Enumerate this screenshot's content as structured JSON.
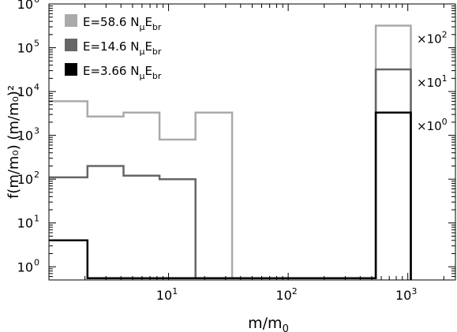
{
  "chart_data": {
    "type": "histogram-step",
    "xlabel": "m/m",
    "xlabel_sub": "0",
    "ylabel": "f(m/m₀) (m/m₀)²",
    "xscale": "log",
    "yscale": "log",
    "xlim": [
      1.0,
      2500.0
    ],
    "ylim": [
      0.5,
      1000000.0
    ],
    "x_ticks": [
      {
        "value": 10,
        "base": "10",
        "exp": "1"
      },
      {
        "value": 100,
        "base": "10",
        "exp": "2"
      },
      {
        "value": 1000,
        "base": "10",
        "exp": "3"
      }
    ],
    "y_ticks": [
      {
        "value": 1,
        "base": "10",
        "exp": "0"
      },
      {
        "value": 10,
        "base": "10",
        "exp": "1"
      },
      {
        "value": 100,
        "base": "10",
        "exp": "2"
      },
      {
        "value": 1000,
        "base": "10",
        "exp": "3"
      },
      {
        "value": 10000,
        "base": "10",
        "exp": "4"
      },
      {
        "value": 100000,
        "base": "10",
        "exp": "5"
      },
      {
        "value": 1000000,
        "base": "10",
        "exp": "6"
      }
    ],
    "legend_position": "top-left",
    "series": [
      {
        "name": "E=58.6 NμE br",
        "legend": {
          "prefix": "E=58.6 N",
          "sub1": "μ",
          "mid": "E",
          "sub2": "br"
        },
        "color": "#aaaaaa",
        "edges": [
          1.0,
          2.1,
          4.2,
          8.4,
          16.8,
          34,
          540,
          1060
        ],
        "values": [
          6000,
          2700,
          3300,
          800,
          3300,
          0.55,
          320000
        ],
        "outlier_label": {
          "base": "×10",
          "exp": "2"
        }
      },
      {
        "name": "E=14.6 NμE br",
        "legend": {
          "prefix": "E=14.6 N",
          "sub1": "μ",
          "mid": "E",
          "sub2": "br"
        },
        "color": "#666666",
        "edges": [
          1.0,
          2.1,
          4.2,
          8.4,
          16.8,
          540,
          1060
        ],
        "values": [
          110,
          200,
          120,
          100,
          0.55,
          32000
        ],
        "outlier_label": {
          "base": "×10",
          "exp": "1"
        }
      },
      {
        "name": "E=3.66 NμE br",
        "legend": {
          "prefix": "E=3.66 N",
          "sub1": "μ",
          "mid": "E",
          "sub2": "br"
        },
        "color": "#000000",
        "edges": [
          1.0,
          2.1,
          540,
          1060
        ],
        "values": [
          4,
          0.55,
          3300
        ],
        "outlier_label": {
          "base": "×10",
          "exp": "0"
        }
      }
    ]
  }
}
